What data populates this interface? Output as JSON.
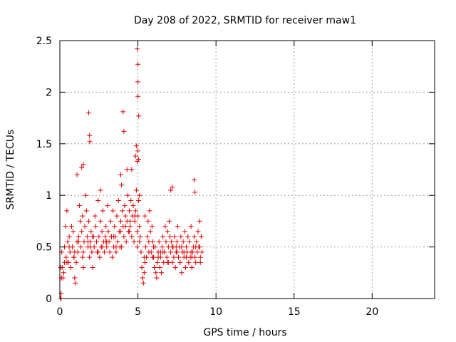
{
  "chart_data": {
    "type": "scatter",
    "title": "Day 208 of 2022, SRMTID for receiver maw1",
    "xlabel": "GPS time / hours",
    "ylabel": "SRMTID / TECUs",
    "xlim": [
      0,
      24
    ],
    "ylim": [
      0,
      2.5
    ],
    "x_ticks": [
      0,
      5,
      10,
      15,
      20
    ],
    "x_tick_labels": [
      "0",
      "5",
      "10",
      "15",
      "20"
    ],
    "y_ticks": [
      0,
      0.5,
      1,
      1.5,
      2,
      2.5
    ],
    "y_tick_labels": [
      "0",
      "0.5",
      "1",
      "1.5",
      "2",
      "2.5"
    ],
    "grid": true,
    "marker": "+",
    "series": [
      {
        "name": "maw1",
        "color": "#e00000",
        "x": [
          0.05,
          0.08,
          0.1,
          0.12,
          0.15,
          0.2,
          0.25,
          0.3,
          0.35,
          0.4,
          0.45,
          0.5,
          0.55,
          0.6,
          0.65,
          0.7,
          0.75,
          0.8,
          0.85,
          0.9,
          0.95,
          1.0,
          1.05,
          1.1,
          1.15,
          1.2,
          1.25,
          1.3,
          1.35,
          1.4,
          1.45,
          1.5,
          1.55,
          1.6,
          1.65,
          1.7,
          1.75,
          1.8,
          1.85,
          1.9,
          1.95,
          2.0,
          2.05,
          2.1,
          2.15,
          2.2,
          2.25,
          2.3,
          2.35,
          2.4,
          2.45,
          2.5,
          2.55,
          2.6,
          2.65,
          2.7,
          2.75,
          2.8,
          2.85,
          2.9,
          2.95,
          3.0,
          3.05,
          3.1,
          3.15,
          3.2,
          3.25,
          3.3,
          3.35,
          3.4,
          3.45,
          3.5,
          3.55,
          3.6,
          3.65,
          3.7,
          3.75,
          3.8,
          3.85,
          3.9,
          3.95,
          4.0,
          4.05,
          4.1,
          4.15,
          4.2,
          4.25,
          4.3,
          4.35,
          4.4,
          4.45,
          4.5,
          4.55,
          4.6,
          4.65,
          4.7,
          4.75,
          4.8,
          4.85,
          4.9,
          4.95,
          5.0,
          5.05,
          5.1,
          5.15,
          5.2,
          5.25,
          5.3,
          5.35,
          5.4,
          5.45,
          5.5,
          5.55,
          5.6,
          5.65,
          5.7,
          5.75,
          5.8,
          5.85,
          5.9,
          5.95,
          6.0,
          6.05,
          6.1,
          6.15,
          6.2,
          6.25,
          6.3,
          6.35,
          6.4,
          6.45,
          6.5,
          6.55,
          6.6,
          6.65,
          6.7,
          6.75,
          6.8,
          6.85,
          6.9,
          6.95,
          7.0,
          7.05,
          7.1,
          7.15,
          7.2,
          7.25,
          7.3,
          7.35,
          7.4,
          7.45,
          7.5,
          7.55,
          7.6,
          7.65,
          7.7,
          7.75,
          7.8,
          7.85,
          7.9,
          7.95,
          8.0,
          8.05,
          8.1,
          8.15,
          8.2,
          8.25,
          8.3,
          8.35,
          8.4,
          8.45,
          8.5,
          8.55,
          8.6,
          8.65,
          8.7,
          8.75,
          8.8,
          8.85,
          8.9,
          8.95,
          9.0,
          9.05,
          9.1,
          0.3,
          0.6,
          0.9,
          1.2,
          1.5,
          1.8,
          2.1,
          2.4,
          2.7,
          3.0,
          3.3,
          3.6,
          3.9,
          4.2,
          4.5,
          4.8,
          5.1,
          5.4,
          5.7,
          6.0,
          6.3,
          6.6,
          6.9,
          7.2,
          7.5,
          7.8,
          8.1,
          8.4,
          8.7,
          9.0,
          0.45,
          0.95,
          1.45,
          1.95,
          2.45,
          2.95,
          3.45,
          3.95,
          4.45,
          4.95,
          5.45,
          5.95,
          6.45,
          6.95,
          7.45,
          7.95,
          8.45,
          8.95,
          1.1,
          1.4,
          1.5,
          1.85,
          1.9,
          1.92,
          4.05,
          4.1,
          4.9,
          4.95,
          5.0,
          5.0,
          5.0,
          5.05,
          5.0,
          4.85,
          4.95,
          5.05,
          5.1,
          0.05,
          0.08,
          0.1,
          8.6,
          8.65,
          7.1,
          7.2,
          2.6,
          3.9,
          4.3,
          4.6
        ],
        "y": [
          0.0,
          0.0,
          0.2,
          0.45,
          0.3,
          0.2,
          0.25,
          0.5,
          0.7,
          0.4,
          0.85,
          0.55,
          0.35,
          0.6,
          0.45,
          0.3,
          0.7,
          0.5,
          0.65,
          0.4,
          0.2,
          0.15,
          0.35,
          0.55,
          0.45,
          0.6,
          0.9,
          0.75,
          0.5,
          0.65,
          0.8,
          0.45,
          0.55,
          0.7,
          1.0,
          0.85,
          0.6,
          0.5,
          0.75,
          0.4,
          0.55,
          0.65,
          0.45,
          0.3,
          0.6,
          0.5,
          0.8,
          0.7,
          0.55,
          0.45,
          0.95,
          0.6,
          0.4,
          0.75,
          0.5,
          0.65,
          0.85,
          0.55,
          0.45,
          0.6,
          0.7,
          0.5,
          0.9,
          0.65,
          0.55,
          0.45,
          0.75,
          0.6,
          0.4,
          0.85,
          0.5,
          0.7,
          0.6,
          0.45,
          0.8,
          0.55,
          0.95,
          0.65,
          0.5,
          0.75,
          1.1,
          0.85,
          0.7,
          0.6,
          0.9,
          0.8,
          0.55,
          0.75,
          1.0,
          0.65,
          0.85,
          0.7,
          0.95,
          0.6,
          0.8,
          0.9,
          0.55,
          0.75,
          0.85,
          1.05,
          0.65,
          0.8,
          0.95,
          0.7,
          0.6,
          0.45,
          0.3,
          0.2,
          0.15,
          0.25,
          0.35,
          0.5,
          0.4,
          0.6,
          0.75,
          0.55,
          0.85,
          0.65,
          0.45,
          0.7,
          0.55,
          0.4,
          0.3,
          0.5,
          0.25,
          0.2,
          0.35,
          0.45,
          0.55,
          0.3,
          0.4,
          0.25,
          0.5,
          0.6,
          0.35,
          0.45,
          0.7,
          0.55,
          0.4,
          0.65,
          0.5,
          0.75,
          0.6,
          0.45,
          0.55,
          0.35,
          0.5,
          0.4,
          0.6,
          0.3,
          0.45,
          0.55,
          0.7,
          0.4,
          0.5,
          0.35,
          0.6,
          0.25,
          0.45,
          0.55,
          0.4,
          0.65,
          0.3,
          0.5,
          0.45,
          0.6,
          0.35,
          0.55,
          0.4,
          0.7,
          0.3,
          0.45,
          0.5,
          0.6,
          0.4,
          0.35,
          0.55,
          0.45,
          0.65,
          0.5,
          0.75,
          0.4,
          0.6,
          0.45,
          0.35,
          0.5,
          0.4,
          0.55,
          0.3,
          0.55,
          0.6,
          0.45,
          0.5,
          0.55,
          0.6,
          0.5,
          0.65,
          0.7,
          0.75,
          0.8,
          0.55,
          0.4,
          0.45,
          0.5,
          0.4,
          0.45,
          0.35,
          0.5,
          0.45,
          0.5,
          0.4,
          0.45,
          0.5,
          0.35,
          0.35,
          0.45,
          0.4,
          0.5,
          0.45,
          0.55,
          0.6,
          0.5,
          0.65,
          0.5,
          0.8,
          0.4,
          0.45,
          0.35,
          0.5,
          0.45,
          0.4,
          0.5,
          1.2,
          1.27,
          1.3,
          1.8,
          1.58,
          1.52,
          1.81,
          1.62,
          1.48,
          2.42,
          2.27,
          2.1,
          1.96,
          1.77,
          1.43,
          1.38,
          1.33,
          1.35,
          1.0,
          0.3,
          0.05,
          0.2,
          1.15,
          1.03,
          1.05,
          1.08,
          1.05,
          1.2,
          1.25,
          1.25
        ]
      }
    ]
  }
}
